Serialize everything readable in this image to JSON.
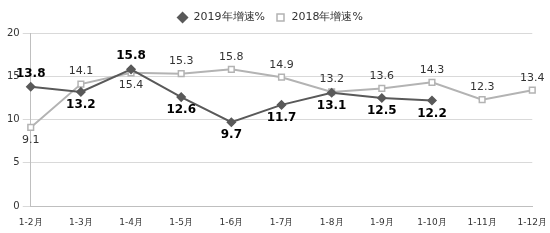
{
  "chart_data": {
    "type": "line",
    "categories": [
      "1-2月",
      "1-3月",
      "1-4月",
      "1-5月",
      "1-6月",
      "1-7月",
      "1-8月",
      "1-9月",
      "1-10月",
      "1-11月",
      "1-12月"
    ],
    "series": [
      {
        "name": "2019年增速%",
        "color": "#595959",
        "marker": "diamond",
        "line_style": "solid",
        "values": [
          13.8,
          13.2,
          15.8,
          12.6,
          9.7,
          11.7,
          13.1,
          12.5,
          12.2,
          null,
          null
        ]
      },
      {
        "name": "2018年增速%",
        "color": "#b3b3b3",
        "marker": "square",
        "line_style": "solid",
        "values": [
          9.1,
          14.1,
          15.4,
          15.3,
          15.8,
          14.9,
          13.2,
          13.6,
          14.3,
          12.3,
          13.4
        ]
      }
    ],
    "ylim": [
      0,
      20
    ],
    "yticks": [
      0,
      5,
      10,
      15,
      20
    ],
    "grid": true,
    "legend": "top",
    "data_labels": true
  }
}
